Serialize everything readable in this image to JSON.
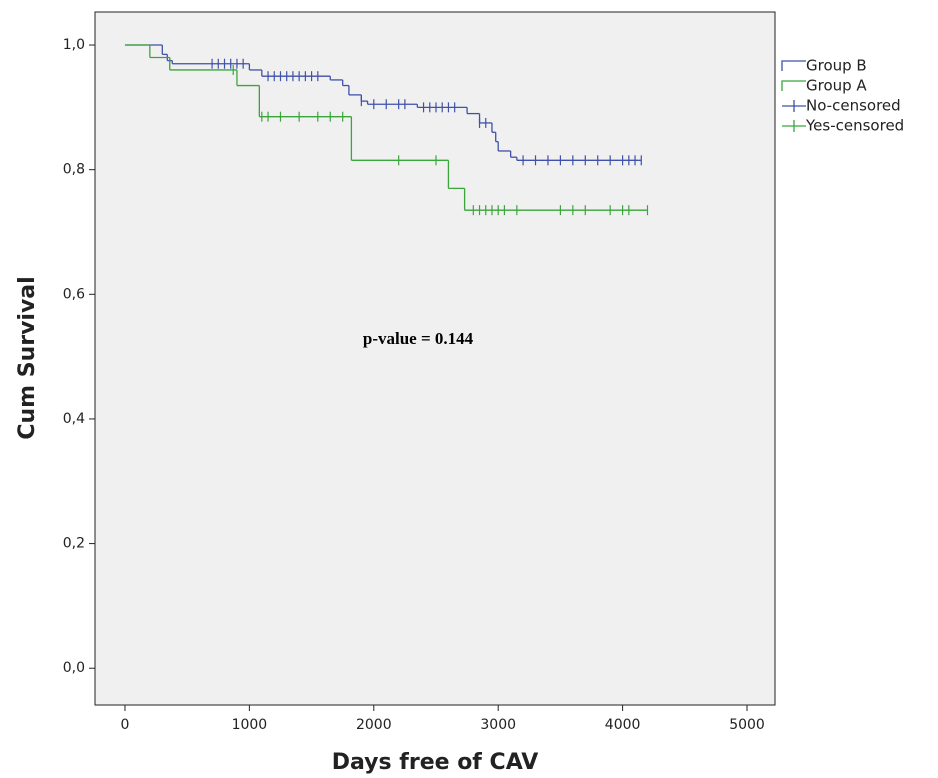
{
  "chart_data": {
    "type": "step",
    "annotation": "p-value = 0.144",
    "x_label": "Days free of CAV",
    "y_label": "Cum Survival",
    "xlim": [
      -241,
      5225
    ],
    "ylim": [
      -0.059,
      1.053
    ],
    "xticks": [
      0,
      1000,
      2000,
      3000,
      4000,
      5000
    ],
    "yticks": [
      {
        "value": 0,
        "label": "0,0"
      },
      {
        "value": 0.2,
        "label": "0,2"
      },
      {
        "value": 0.4,
        "label": "0,4"
      },
      {
        "value": 0.6,
        "label": "0,6"
      },
      {
        "value": 0.8,
        "label": "0,8"
      },
      {
        "value": 1,
        "label": "1,0"
      }
    ],
    "legend": "right",
    "series": [
      {
        "name": "Group B",
        "color": "#3f51a8",
        "style": "step",
        "x": [
          0,
          300,
          340,
          380,
          1000,
          1100,
          1650,
          1750,
          1800,
          1900,
          1950,
          2350,
          2750,
          2850,
          2950,
          2980,
          3000,
          3100,
          3150,
          4150
        ],
        "values": [
          1,
          0.985,
          0.975,
          0.97,
          0.96,
          0.95,
          0.944,
          0.935,
          0.92,
          0.91,
          0.905,
          0.9,
          0.89,
          0.875,
          0.86,
          0.845,
          0.83,
          0.82,
          0.815,
          0.815
        ]
      },
      {
        "name": "Group A",
        "color": "#3aa53a",
        "style": "step",
        "x": [
          0,
          200,
          360,
          900,
          1080,
          1820,
          2600,
          2730,
          4200
        ],
        "values": [
          1,
          0.98,
          0.96,
          0.935,
          0.885,
          0.815,
          0.77,
          0.735,
          0.735
        ]
      },
      {
        "name": "No-censored",
        "color": "#3f51a8",
        "style": "censor",
        "x": [
          700,
          750,
          800,
          850,
          900,
          950,
          1150,
          1200,
          1250,
          1300,
          1350,
          1400,
          1450,
          1500,
          1550,
          1900,
          2000,
          2100,
          2200,
          2250,
          2400,
          2450,
          2500,
          2550,
          2600,
          2650,
          2850,
          2900,
          3200,
          3300,
          3400,
          3500,
          3600,
          3700,
          3800,
          3900,
          4000,
          4050,
          4100,
          4150
        ],
        "values": [
          0.97,
          0.97,
          0.97,
          0.97,
          0.97,
          0.97,
          0.95,
          0.95,
          0.95,
          0.95,
          0.95,
          0.95,
          0.95,
          0.95,
          0.95,
          0.91,
          0.905,
          0.905,
          0.905,
          0.905,
          0.9,
          0.9,
          0.9,
          0.9,
          0.9,
          0.9,
          0.875,
          0.875,
          0.815,
          0.815,
          0.815,
          0.815,
          0.815,
          0.815,
          0.815,
          0.815,
          0.815,
          0.815,
          0.815,
          0.815
        ]
      },
      {
        "name": "Yes-censored",
        "color": "#3aa53a",
        "style": "censor",
        "x": [
          870,
          1100,
          1150,
          1250,
          1400,
          1550,
          1650,
          1750,
          2200,
          2500,
          2800,
          2850,
          2900,
          2950,
          3000,
          3050,
          3150,
          3500,
          3600,
          3700,
          3900,
          4000,
          4050,
          4200
        ],
        "values": [
          0.96,
          0.885,
          0.885,
          0.885,
          0.885,
          0.885,
          0.885,
          0.885,
          0.815,
          0.815,
          0.735,
          0.735,
          0.735,
          0.735,
          0.735,
          0.735,
          0.735,
          0.735,
          0.735,
          0.735,
          0.735,
          0.735,
          0.735,
          0.735
        ]
      }
    ]
  }
}
